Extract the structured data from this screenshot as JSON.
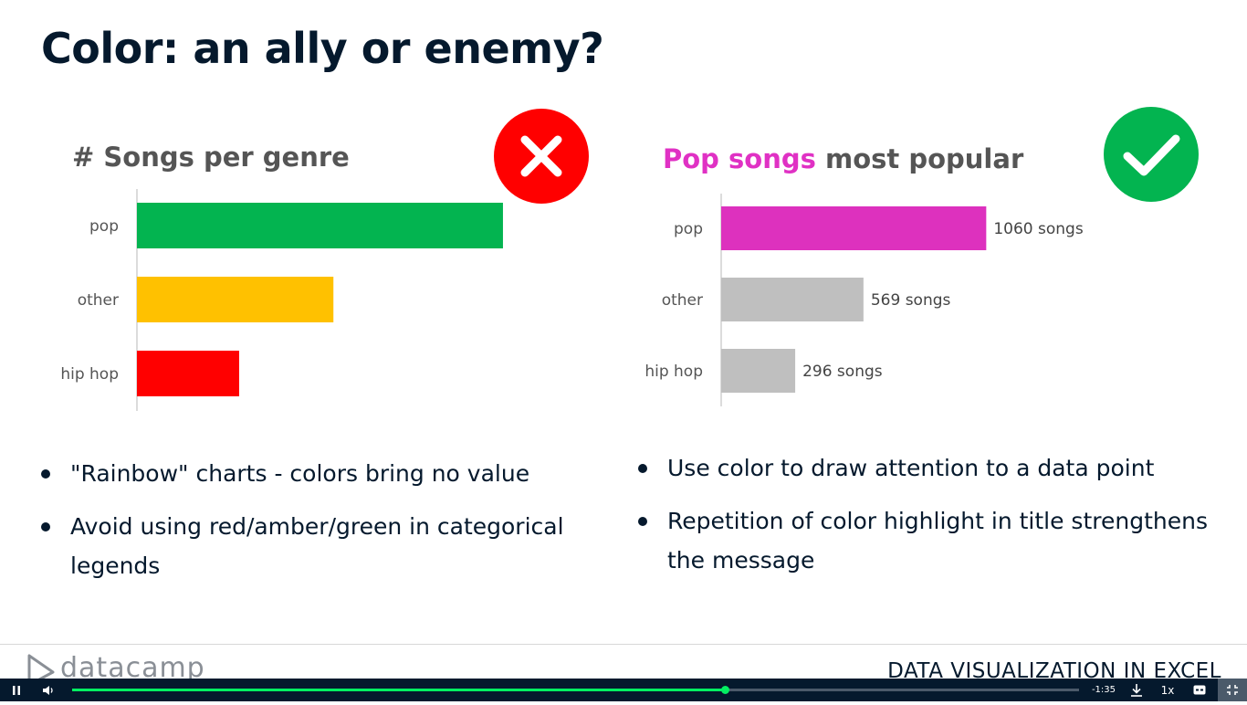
{
  "slide": {
    "title": "Color: an ally or enemy?"
  },
  "left_panel": {
    "title": "# Songs per genre",
    "badge_icon": "cross-icon",
    "badge_color": "#ff0000",
    "bullets": [
      "\"Rainbow\" charts - colors bring no value",
      "Avoid using red/amber/green in categorical legends"
    ]
  },
  "right_panel": {
    "title_highlight": "Pop songs",
    "title_rest": " most popular",
    "highlight_color": "#e031c4",
    "badge_icon": "check-icon",
    "badge_color": "#03b450",
    "bullets": [
      "Use color to draw attention to a data point",
      "Repetition of color highlight in title strengthens the message"
    ]
  },
  "chart_data": [
    {
      "type": "bar",
      "orientation": "horizontal",
      "title": "# Songs per genre",
      "categories": [
        "pop",
        "other",
        "hip hop"
      ],
      "values": [
        1060,
        569,
        296
      ],
      "colors": [
        "#03b450",
        "#ffc100",
        "#ff0000"
      ],
      "xlim": [
        0,
        1150
      ],
      "grid": false,
      "data_labels": []
    },
    {
      "type": "bar",
      "orientation": "horizontal",
      "title": "Pop songs most popular",
      "categories": [
        "pop",
        "other",
        "hip hop"
      ],
      "values": [
        1060,
        569,
        296
      ],
      "colors": [
        "#dd31be",
        "#bfbfbf",
        "#bfbfbf"
      ],
      "xlim": [
        0,
        1150
      ],
      "grid": false,
      "data_labels": [
        "1060 songs",
        "569 songs",
        "296 songs"
      ]
    }
  ],
  "footer": {
    "logo_text": "datacamp",
    "course_name": "DATA VISUALIZATION IN EXCEL"
  },
  "player": {
    "time_remaining": "-1:35",
    "speed": "1x",
    "progress": 0.648,
    "play_icon": "pause-icon",
    "volume_icon": "volume-icon",
    "download_icon": "download-icon",
    "captions_icon": "captions-icon",
    "fullscreen_icon": "exit-fullscreen-icon"
  }
}
